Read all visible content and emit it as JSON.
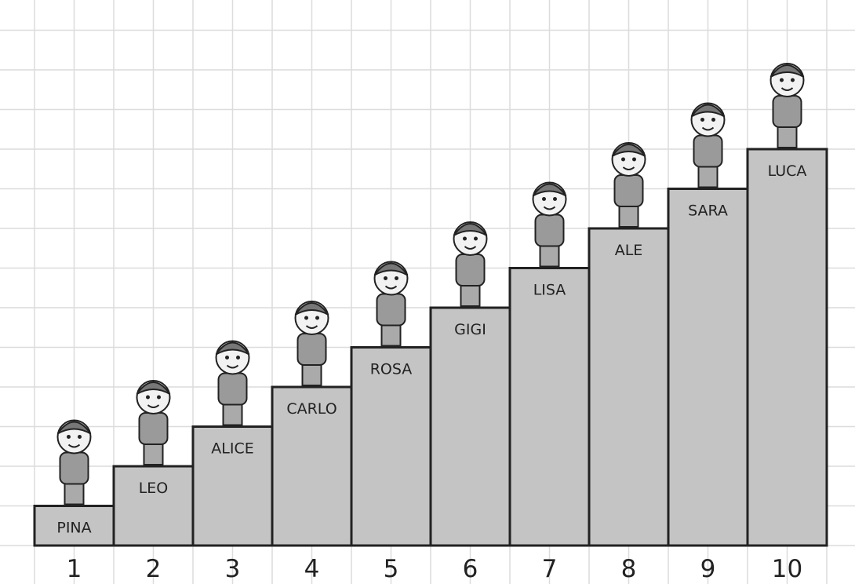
{
  "steps": [
    {
      "number": 1,
      "name": "PINA",
      "height": 1
    },
    {
      "number": 2,
      "name": "LEO",
      "height": 2
    },
    {
      "number": 3,
      "name": "ALICE",
      "height": 3
    },
    {
      "number": 4,
      "name": "CARLO",
      "height": 4
    },
    {
      "number": 5,
      "name": "ROSA",
      "height": 5
    },
    {
      "number": 6,
      "name": "GIGI",
      "height": 6
    },
    {
      "number": 7,
      "name": "LISA",
      "height": 7
    },
    {
      "number": 8,
      "name": "ALE",
      "height": 8
    },
    {
      "number": 9,
      "name": "SARA",
      "height": 9
    },
    {
      "number": 10,
      "name": "LUCA",
      "height": 10
    }
  ]
}
